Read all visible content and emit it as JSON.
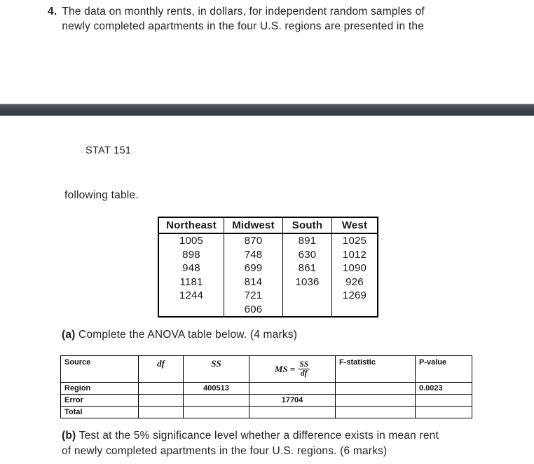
{
  "question4": {
    "number": "4.",
    "line1": "The data on monthly rents, in dollars, for independent random samples of",
    "line2": "newly completed apartments in the four U.S. regions are presented in the"
  },
  "course_header": "STAT 151",
  "following_text": "following table.",
  "divider_color": "#3c4247",
  "data_table": {
    "headers": [
      "Northeast",
      "Midwest",
      "South",
      "West"
    ],
    "rows": [
      [
        "1005",
        "870",
        "891",
        "1025"
      ],
      [
        "898",
        "748",
        "630",
        "1012"
      ],
      [
        "948",
        "699",
        "861",
        "1090"
      ],
      [
        "1181",
        "814",
        "1036",
        "926"
      ],
      [
        "1244",
        "721",
        "",
        "1269"
      ],
      [
        "",
        "606",
        "",
        ""
      ]
    ]
  },
  "part_a": {
    "label": "(a)",
    "text": " Complete the ANOVA table below. (4 marks)"
  },
  "anova_table": {
    "headers": {
      "source": "Source",
      "df": "df",
      "ss": "SS",
      "ms_prefix": "MS =",
      "ms_numerator": "SS",
      "ms_denominator": "df",
      "f_statistic": "F-statistic",
      "p_value": "P-value"
    },
    "rows": [
      {
        "source": "Region",
        "df": "",
        "ss": "400513",
        "ms": "",
        "f": "",
        "p": "0.0023"
      },
      {
        "source": "Error",
        "df": "",
        "ss": "",
        "ms": "17704",
        "f": "",
        "p": ""
      },
      {
        "source": "Total",
        "df": "",
        "ss": "",
        "ms": "",
        "f": "",
        "p": ""
      }
    ]
  },
  "part_b": {
    "label": "(b)",
    "line1": " Test at the 5% significance level whether a difference exists in mean rent",
    "line2": "of newly completed apartments in the four U.S. regions. (6 marks)"
  }
}
